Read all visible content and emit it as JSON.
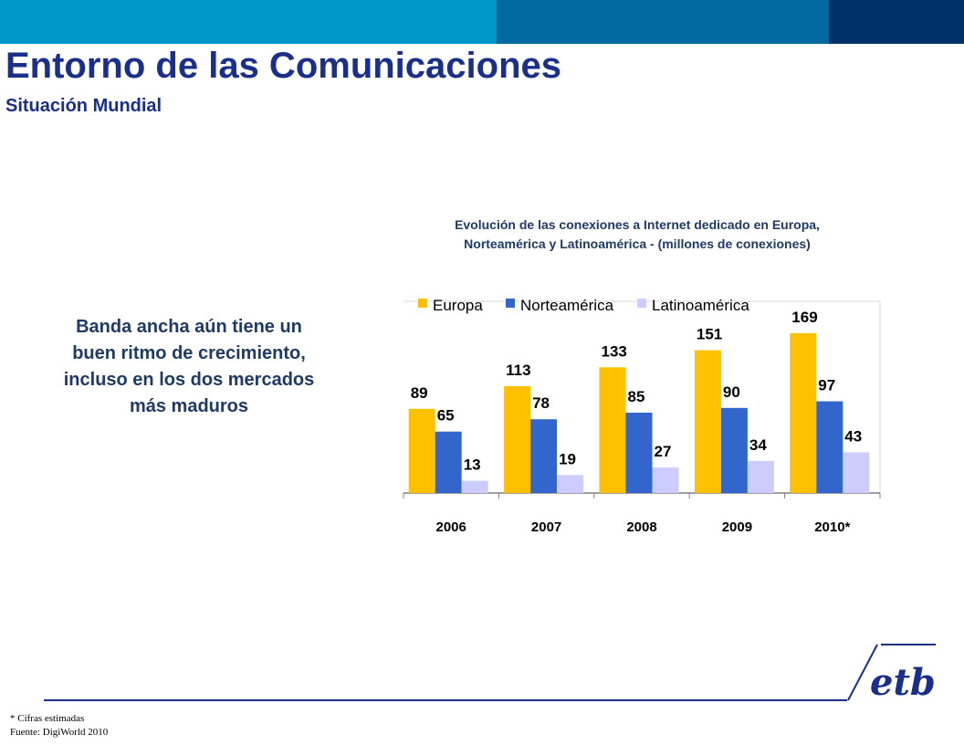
{
  "header": {
    "title": "Entorno de las Comunicaciones",
    "subtitle": "Situación  Mundial",
    "colors": [
      "#0096c8",
      "#006aa0",
      "#00326a"
    ]
  },
  "callout": {
    "lines": [
      "Banda ancha aún tiene un",
      "buen ritmo de crecimiento,",
      "incluso en los dos mercados",
      "más maduros"
    ]
  },
  "chart_title": {
    "line1": "Evolución  de las conexiones  a Internet dedicado  en Europa,",
    "line2": "Norteamérica  y Latinoamérica  - (millones de conexiones)"
  },
  "chart_data": {
    "type": "bar",
    "categories": [
      "2006",
      "2007",
      "2008",
      "2009",
      "2010*"
    ],
    "series": [
      {
        "name": "Europa",
        "values": [
          89,
          113,
          133,
          151,
          169
        ],
        "color": "#ffc000"
      },
      {
        "name": "Norteamérica",
        "values": [
          65,
          78,
          85,
          90,
          97
        ],
        "color": "#3366cc"
      },
      {
        "name": "Latinoamérica",
        "values": [
          13,
          19,
          27,
          34,
          43
        ],
        "color": "#ccccff"
      }
    ],
    "legend": "top",
    "grid": false,
    "ylim": [
      0,
      180
    ]
  },
  "footer": {
    "note": "* Cifras estimadas",
    "source": "Fuente: DigiWorld 2010",
    "logo_text": "etb"
  }
}
